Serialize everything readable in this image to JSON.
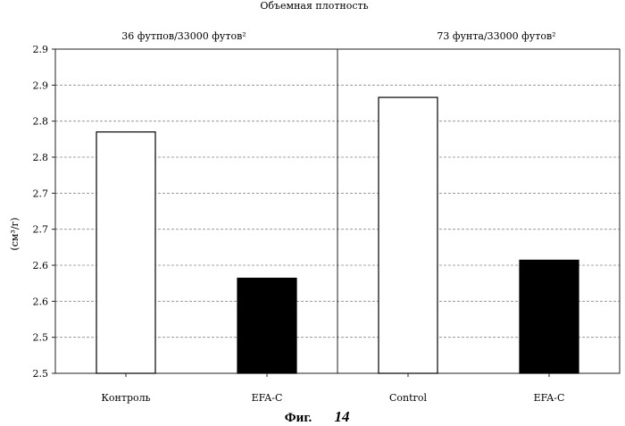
{
  "chart_data": {
    "type": "bar",
    "title": "Объемная плотность",
    "ylabel": "(см³/г)",
    "ylim": [
      2.5,
      2.95
    ],
    "yticks": [
      {
        "value": 2.5,
        "label": "2.5"
      },
      {
        "value": 2.55,
        "label": "2.5"
      },
      {
        "value": 2.6,
        "label": "2.6"
      },
      {
        "value": 2.65,
        "label": "2.6"
      },
      {
        "value": 2.7,
        "label": "2.7"
      },
      {
        "value": 2.75,
        "label": "2.7"
      },
      {
        "value": 2.8,
        "label": "2.8"
      },
      {
        "value": 2.85,
        "label": "2.8"
      },
      {
        "value": 2.9,
        "label": "2.9"
      },
      {
        "value": 2.95,
        "label": "2.9"
      }
    ],
    "grid": true,
    "legend": "none",
    "groups": [
      {
        "label": "36 футпов/33000 футов²"
      },
      {
        "label": "73 фунта/33000 футов²"
      }
    ],
    "categories": [
      "Контроль",
      "EFA-C",
      "Control",
      "EFA-C"
    ],
    "values": [
      2.835,
      2.632,
      2.883,
      2.657
    ],
    "bar_colors": [
      "#ffffff",
      "#000000",
      "#ffffff",
      "#000000"
    ]
  },
  "caption": {
    "prefix": "Фиг.",
    "number": "14"
  }
}
